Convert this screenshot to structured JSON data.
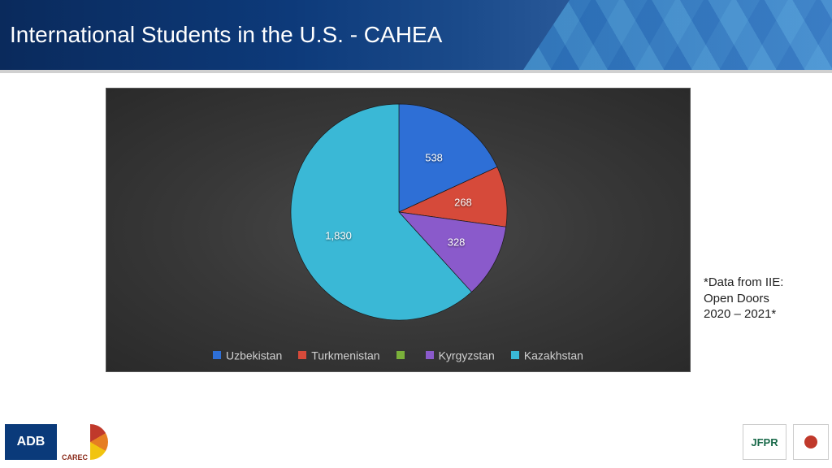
{
  "header": {
    "title": "International Students in the U.S. - CAHEA"
  },
  "chart": {
    "type": "pie",
    "background_color": "#383838",
    "label_color": "#ffffff",
    "label_fontsize": 13,
    "legend_fontsize": 14,
    "legend_color": "#d0d0d0",
    "slices": [
      {
        "label": "Uzbekistan",
        "value": 538,
        "display": "538",
        "color": "#2e6fd6"
      },
      {
        "label": "Turkmenistan",
        "value": 268,
        "display": "268",
        "color": "#d64a3a"
      },
      {
        "label": "Kyrgyzstan",
        "value": 328,
        "display": "328",
        "color": "#8a5acb"
      },
      {
        "label": "Kazakhstan",
        "value": 1830,
        "display": "1,830",
        "color": "#3ab8d6"
      }
    ],
    "tajikistan_legend_visible": false,
    "tajikistan_color": "#7ab03a"
  },
  "side_note": {
    "line1": "*Data from IIE:",
    "line2": "Open Doors",
    "line3": "2020 – 2021*"
  },
  "footer": {
    "adb": "ADB",
    "carec": "CAREC",
    "jfpr": "JFPR",
    "japan": "Japan"
  }
}
